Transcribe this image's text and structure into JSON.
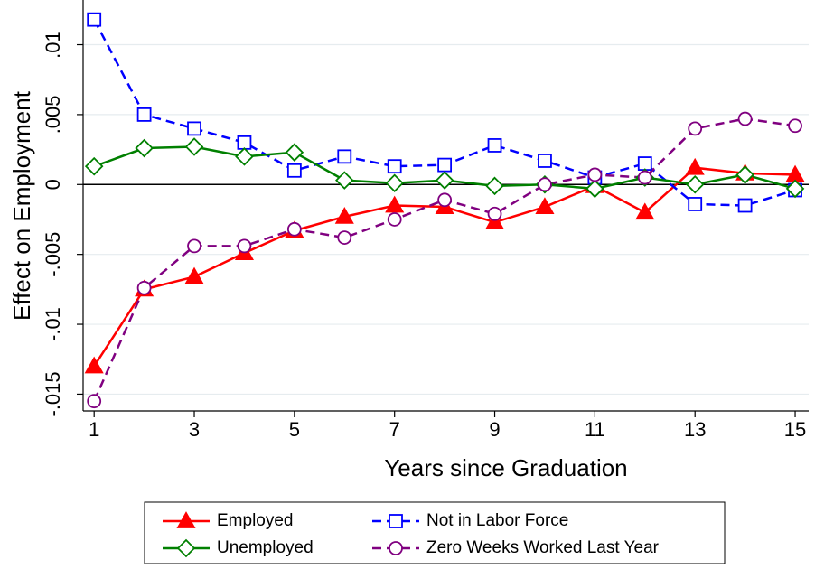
{
  "chart_data": {
    "type": "line",
    "x_label": "Years since Graduation",
    "y_label": "Effect on Employment",
    "x": [
      1,
      2,
      3,
      4,
      5,
      6,
      7,
      8,
      9,
      10,
      11,
      12,
      13,
      14,
      15
    ],
    "xlim": [
      0.78,
      15.27
    ],
    "xticks": [
      1,
      3,
      5,
      7,
      9,
      11,
      13,
      15
    ],
    "ylim": [
      -0.0162,
      0.0132
    ],
    "yticks": [
      {
        "value": -0.015,
        "label": "-.015"
      },
      {
        "value": -0.01,
        "label": "-.01"
      },
      {
        "value": -0.005,
        "label": "-.005"
      },
      {
        "value": 0,
        "label": "0"
      },
      {
        "value": 0.005,
        "label": ".005"
      },
      {
        "value": 0.01,
        "label": ".01"
      }
    ],
    "grid": true,
    "refline": 0,
    "legend": "bottom",
    "legend_cols": 2,
    "series": [
      {
        "name": "Employed",
        "color": "#ff0000",
        "marker": "triangle",
        "dash": false,
        "values": [
          -0.013,
          -0.0075,
          -0.0066,
          -0.0049,
          -0.0033,
          -0.0023,
          -0.0015,
          -0.0016,
          -0.0027,
          -0.0016,
          -0.0001,
          -0.002,
          0.0012,
          0.0008,
          0.0007
        ]
      },
      {
        "name": "Not in Labor Force",
        "color": "#0000ff",
        "marker": "square",
        "dash": true,
        "values": [
          0.0118,
          0.005,
          0.004,
          0.003,
          0.001,
          0.002,
          0.0013,
          0.0014,
          0.0028,
          0.0017,
          0.0005,
          0.0015,
          -0.0014,
          -0.0015,
          -0.0004
        ]
      },
      {
        "name": "Unemployed",
        "color": "#008000",
        "marker": "diamond",
        "dash": false,
        "values": [
          0.0013,
          0.0026,
          0.0027,
          0.002,
          0.0023,
          0.0003,
          0.0001,
          0.0003,
          -0.0001,
          0.0,
          -0.0003,
          0.0005,
          0.0,
          0.0007,
          -0.0003
        ]
      },
      {
        "name": "Zero Weeks Worked Last Year",
        "color": "#800080",
        "marker": "circle",
        "dash": true,
        "values": [
          -0.0155,
          -0.0074,
          -0.0044,
          -0.0044,
          -0.0032,
          -0.0038,
          -0.0025,
          -0.0011,
          -0.0021,
          0.0,
          0.0007,
          0.0005,
          0.004,
          0.0047,
          0.0042
        ]
      }
    ]
  }
}
